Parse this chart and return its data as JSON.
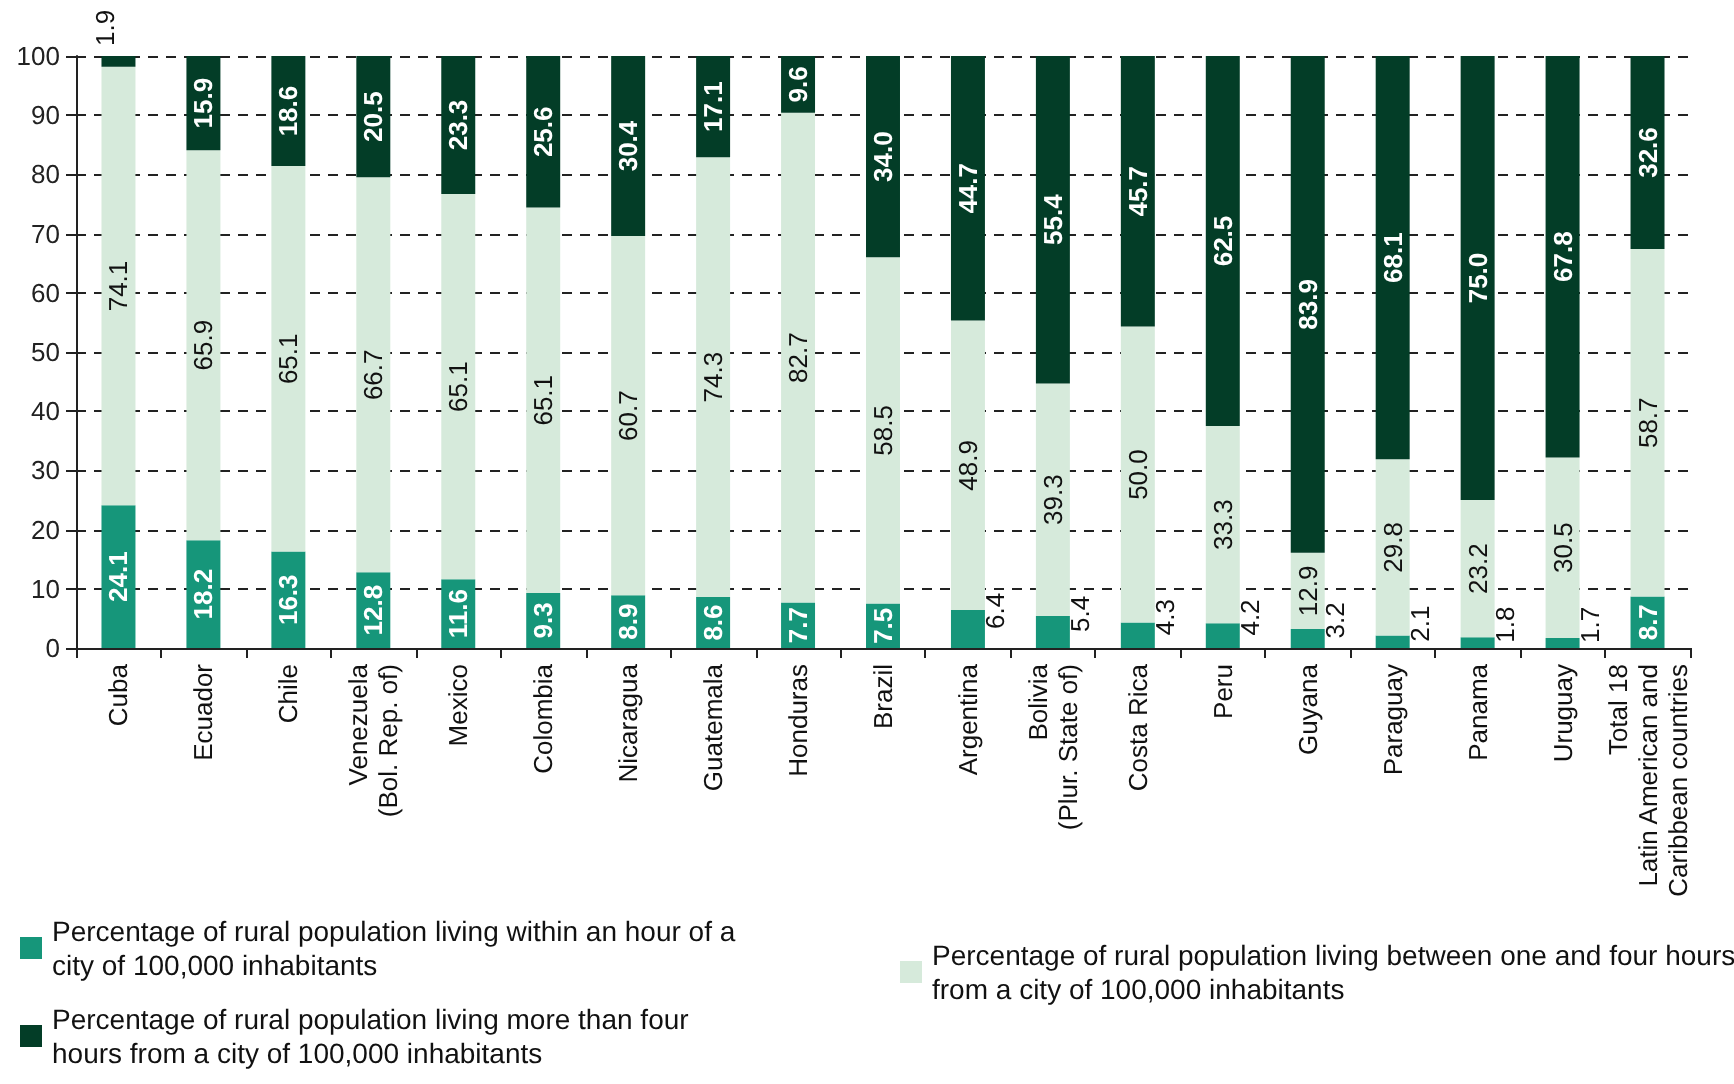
{
  "chart_data": {
    "type": "bar",
    "stacked": true,
    "grid": "y",
    "legend": "bottom",
    "ylim": [
      0,
      100
    ],
    "yticks": [
      0,
      10,
      20,
      30,
      40,
      50,
      60,
      70,
      80,
      90,
      100
    ],
    "categories": [
      "Cuba",
      "Ecuador",
      "Chile",
      "Venezuela\n(Bol. Rep. of)",
      "Mexico",
      "Colombia",
      "Nicaragua",
      "Guatemala",
      "Honduras",
      "Brazil",
      "Argentina",
      "Bolivia\n(Plur. State of)",
      "Costa Rica",
      "Peru",
      "Guyana",
      "Paraguay",
      "Panama",
      "Uruguay",
      "Total 18\nLatin American and\nCaribbean countries"
    ],
    "series": [
      {
        "name": "Percentage of rural population living within an hour of a city of 100,000 inhabitants",
        "color": "#16967a",
        "values": [
          24.1,
          18.2,
          16.3,
          12.8,
          11.6,
          9.3,
          8.9,
          8.6,
          7.7,
          7.5,
          6.4,
          5.4,
          4.3,
          4.2,
          3.2,
          2.1,
          1.8,
          1.7,
          8.7
        ],
        "value_labels": [
          "24.1",
          "18.2",
          "16.3",
          "12.8",
          "11.6",
          "9.3",
          "8.9",
          "8.6",
          "7.7",
          "7.5",
          "6.4",
          "5.4",
          "4.3",
          "4.2",
          "3.2",
          "2.1",
          "1.8",
          "1.7",
          "8.7"
        ]
      },
      {
        "name": "Percentage of rural population living between one and four hours from a city of 100,000 inhabitants",
        "color": "#d6eadb",
        "values": [
          74.1,
          65.9,
          65.1,
          66.7,
          65.1,
          65.1,
          60.7,
          74.3,
          82.7,
          58.5,
          48.9,
          39.3,
          50.0,
          33.3,
          12.9,
          29.8,
          23.2,
          30.5,
          58.7
        ],
        "value_labels": [
          "74.1",
          "65.9",
          "65.1",
          "66.7",
          "65.1",
          "65.1",
          "60.7",
          "74.3",
          "82.7",
          "58.5",
          "48.9",
          "39.3",
          "50.0",
          "33.3",
          "12.9",
          "29.8",
          "23.2",
          "30.5",
          "58.7"
        ]
      },
      {
        "name": "Percentage of rural population living more than four hours from a city of 100,000 inhabitants",
        "color": "#033d27",
        "values": [
          1.9,
          15.9,
          18.6,
          20.5,
          23.3,
          25.6,
          30.4,
          17.1,
          9.6,
          34.0,
          44.7,
          55.4,
          45.7,
          62.5,
          83.9,
          68.1,
          75.0,
          67.8,
          32.6
        ],
        "value_labels": [
          "1.9",
          "15.9",
          "18.6",
          "20.5",
          "23.3",
          "25.6",
          "30.4",
          "17.1",
          "9.6",
          "34.0",
          "44.7",
          "55.4",
          "45.7",
          "62.5",
          "83.9",
          "68.1",
          "75.0",
          "67.8",
          "32.6"
        ]
      }
    ]
  }
}
